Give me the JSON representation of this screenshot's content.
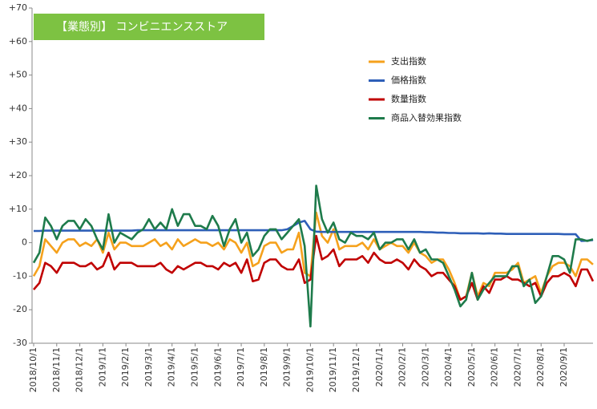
{
  "chart_data": {
    "type": "line",
    "title": "【業態別】 コンビニエンスストア",
    "categories": [
      "2018/10/1",
      null,
      null,
      null,
      "2018/11/1",
      null,
      null,
      null,
      "2018/12/1",
      null,
      null,
      null,
      "2019/1/1",
      null,
      null,
      null,
      "2019/2/1",
      null,
      null,
      null,
      "2019/3/1",
      null,
      null,
      null,
      "2019/4/1",
      null,
      null,
      null,
      "2019/5/1",
      null,
      null,
      null,
      "2019/6/1",
      null,
      null,
      null,
      "2019/7/1",
      null,
      null,
      null,
      "2019/8/1",
      null,
      null,
      null,
      "2019/9/1",
      null,
      null,
      null,
      "2019/10/1",
      null,
      null,
      null,
      "2019/11/1",
      null,
      null,
      null,
      "2019/12/1",
      null,
      null,
      null,
      "2020/1/1",
      null,
      null,
      null,
      "2020/2/1",
      null,
      null,
      null,
      "2020/3/1",
      null,
      null,
      null,
      "2020/4/1",
      null,
      null,
      null,
      "2020/5/1",
      null,
      null,
      null,
      "2020/6/1",
      null,
      null,
      null,
      "2020/7/1",
      null,
      null,
      null,
      "2020/8/1",
      null,
      null,
      null,
      "2020/9/1",
      null,
      null,
      null,
      null,
      null
    ],
    "series": [
      {
        "name": "支出指数",
        "color": "#f5a11c",
        "values": [
          -10,
          -7,
          1,
          -1,
          -3,
          0,
          1,
          1,
          -1,
          0,
          -1,
          1,
          -3,
          3,
          -2,
          0,
          0,
          -1,
          -1,
          -1,
          0,
          1,
          -1,
          0,
          -2,
          1,
          -1,
          0,
          1,
          0,
          0,
          -1,
          0,
          -2,
          1,
          0,
          -3,
          0,
          -7,
          -6,
          -1,
          0,
          0,
          -3,
          -2,
          -2,
          3,
          -9,
          -10,
          9,
          2,
          0,
          4,
          -2,
          -1,
          -1,
          -1,
          0,
          -2,
          1,
          -2,
          -1,
          0,
          -1,
          -1,
          -3,
          0,
          -3,
          -4,
          -6,
          -5,
          -5,
          -8,
          -12,
          -17,
          -16,
          -9,
          -16,
          -12,
          -13,
          -9,
          -9,
          -9,
          -8,
          -6,
          -12,
          -11,
          -10,
          -15,
          -10,
          -7,
          -6,
          -6,
          -7,
          -10,
          -5,
          -5,
          -6.5
        ]
      },
      {
        "name": "価格指数",
        "color": "#2e5fb8",
        "values": [
          3.5,
          3.5,
          3.6,
          3.6,
          3.6,
          3.6,
          3.6,
          3.6,
          3.6,
          3.6,
          3.6,
          3.6,
          3.6,
          3.6,
          3.6,
          3.6,
          3.6,
          3.6,
          3.7,
          3.7,
          3.7,
          3.7,
          3.7,
          3.7,
          3.7,
          3.7,
          3.7,
          3.7,
          3.7,
          3.7,
          3.7,
          3.7,
          3.7,
          3.7,
          3.7,
          3.7,
          3.7,
          3.7,
          3.7,
          3.7,
          3.7,
          3.7,
          3.7,
          3.7,
          4,
          5,
          6,
          6.5,
          4,
          3.3,
          3.2,
          3.2,
          3.2,
          3.2,
          3.2,
          3.2,
          3.2,
          3.2,
          3.2,
          3.2,
          3.2,
          3.2,
          3.2,
          3.2,
          3.2,
          3.2,
          3.2,
          3.2,
          3.1,
          3.1,
          3,
          3,
          2.9,
          2.9,
          2.8,
          2.8,
          2.8,
          2.8,
          2.7,
          2.8,
          2.7,
          2.7,
          2.6,
          2.6,
          2.6,
          2.6,
          2.6,
          2.6,
          2.6,
          2.6,
          2.6,
          2.6,
          2.5,
          2.5,
          2.5,
          0.5,
          0.6,
          0.8
        ]
      },
      {
        "name": "数量指数",
        "color": "#c00000",
        "values": [
          -14,
          -12,
          -6,
          -7,
          -9,
          -6,
          -6,
          -6,
          -7,
          -7,
          -6,
          -8,
          -7,
          -3,
          -8,
          -6,
          -6,
          -6,
          -7,
          -7,
          -7,
          -7,
          -6,
          -8,
          -9,
          -7,
          -8,
          -7,
          -6,
          -6,
          -7,
          -7,
          -8,
          -6,
          -7,
          -6,
          -9,
          -5,
          -11.5,
          -11,
          -6,
          -5,
          -5,
          -7,
          -8,
          -8,
          -5,
          -12,
          -11,
          2,
          -5,
          -4,
          -2,
          -7,
          -5,
          -5,
          -5,
          -4,
          -6,
          -3,
          -5,
          -6,
          -6,
          -5,
          -6,
          -8,
          -5,
          -7,
          -8,
          -10,
          -9,
          -9,
          -11,
          -13,
          -17,
          -16,
          -12,
          -17,
          -13,
          -15,
          -11,
          -11,
          -10,
          -11,
          -11,
          -12,
          -13,
          -12,
          -16,
          -12,
          -10,
          -10,
          -9,
          -10,
          -13,
          -8,
          -8,
          -11.5
        ]
      },
      {
        "name": "商品入替効果指数",
        "color": "#1e7b4b",
        "values": [
          -6,
          -3,
          7.5,
          5,
          1,
          5,
          6.5,
          6.5,
          4,
          7,
          5,
          1,
          -2,
          8.5,
          0,
          3,
          2,
          1,
          3,
          4,
          7,
          4,
          6,
          4,
          10,
          5,
          8.5,
          8.5,
          5,
          5,
          4,
          8,
          5,
          -1,
          4,
          7,
          0,
          3,
          -4,
          -2,
          2,
          4,
          4,
          1,
          3,
          5,
          7,
          -1,
          -25,
          17,
          7,
          3,
          6,
          1,
          0,
          3,
          2,
          2,
          1,
          3,
          -2,
          0,
          0,
          1,
          1,
          -2,
          1,
          -3,
          -2,
          -5,
          -5,
          -6,
          -10,
          -14,
          -19,
          -17,
          -9,
          -17,
          -14,
          -12,
          -10,
          -10,
          -10,
          -7,
          -7,
          -13,
          -11,
          -18,
          -16,
          -10,
          -4,
          -4,
          -5,
          -9,
          1,
          1,
          0.5,
          1
        ]
      }
    ],
    "ylim": [
      -30,
      70
    ],
    "yticks": [
      {
        "value": 70,
        "label": "+70"
      },
      {
        "value": 60,
        "label": "+60"
      },
      {
        "value": 50,
        "label": "+50"
      },
      {
        "value": 40,
        "label": "+40"
      },
      {
        "value": 30,
        "label": "+30"
      },
      {
        "value": 20,
        "label": "+20"
      },
      {
        "value": 10,
        "label": "+10"
      },
      0,
      -10,
      -20,
      -30
    ],
    "grid": false
  }
}
